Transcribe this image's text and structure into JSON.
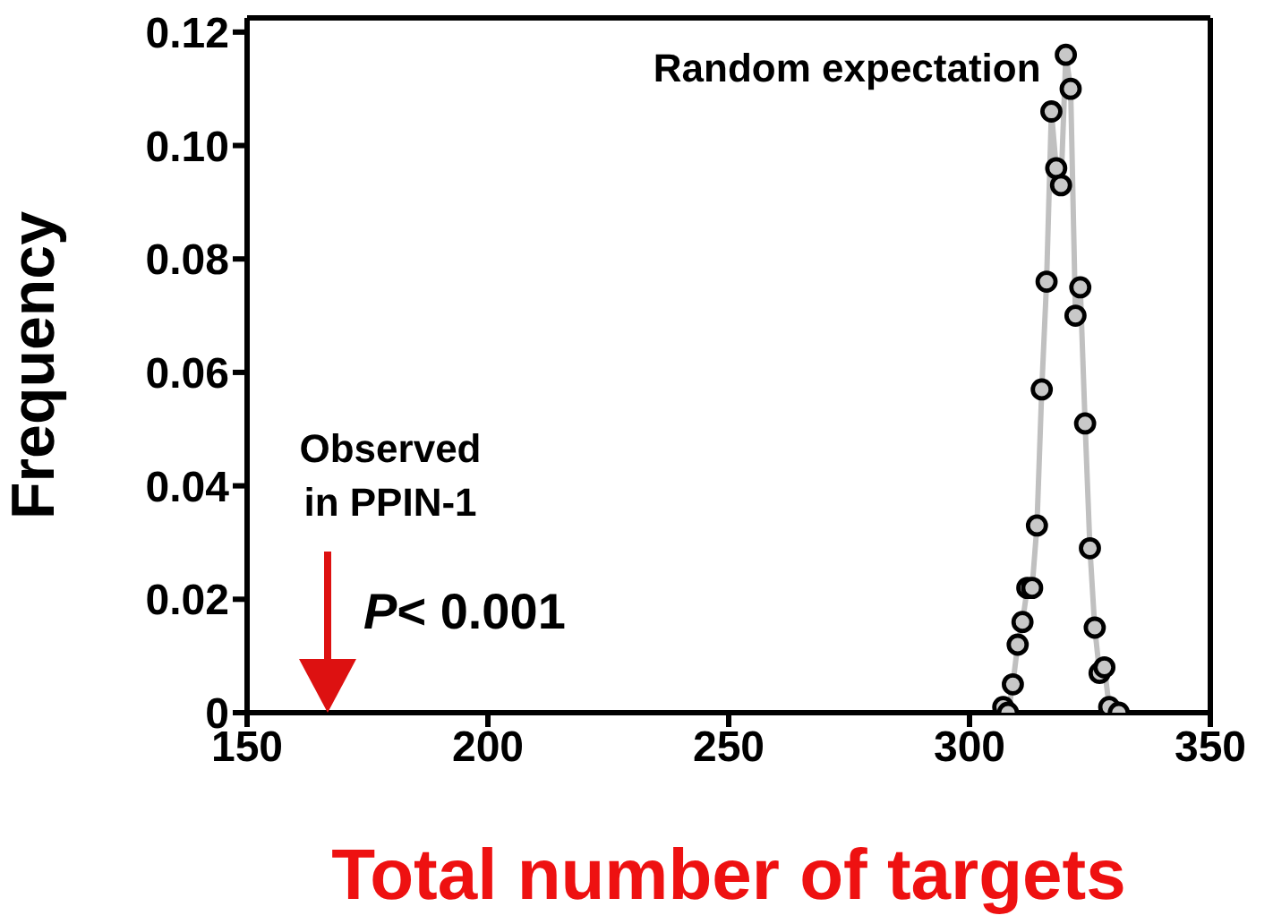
{
  "chart_data": {
    "type": "line",
    "xlabel": "Total number of targets",
    "ylabel": "Frequency",
    "x": [
      307,
      308,
      309,
      310,
      311,
      312,
      313,
      314,
      315,
      316,
      317,
      318,
      319,
      320,
      321,
      322,
      323,
      324,
      325,
      326,
      327,
      328,
      329,
      331
    ],
    "series": [
      {
        "color": "#c0c0c0",
        "values": [
          0.001,
          0,
          0.005,
          0.012,
          0.016,
          0.022,
          0.022,
          0.033,
          0.057,
          0.076,
          0.106,
          0.096,
          0.093,
          0.116,
          0.11,
          0.07,
          0.075,
          0.051,
          0.029,
          0.015,
          0.007,
          0.008,
          0.001,
          0
        ]
      }
    ],
    "marker": "circle",
    "xlim": [
      150,
      350
    ],
    "xticks": [
      150,
      200,
      250,
      300,
      350
    ],
    "ylim": [
      0,
      0.1225
    ],
    "yticks": [
      0,
      {
        "value": 0.02,
        "label": "0.02"
      },
      {
        "value": 0.04,
        "label": "0.04"
      },
      {
        "value": 0.06,
        "label": "0.06"
      },
      {
        "value": 0.08,
        "label": "0.08"
      },
      {
        "value": 0.1,
        "label": "0.10"
      },
      {
        "value": 0.12,
        "label": "0.12"
      }
    ],
    "grid": false,
    "legend": false,
    "annotations": [
      {
        "text": "Random expectation",
        "x": 320,
        "y": 0.116
      },
      "Observed in PPIN-1",
      "P< 0.001"
    ]
  }
}
